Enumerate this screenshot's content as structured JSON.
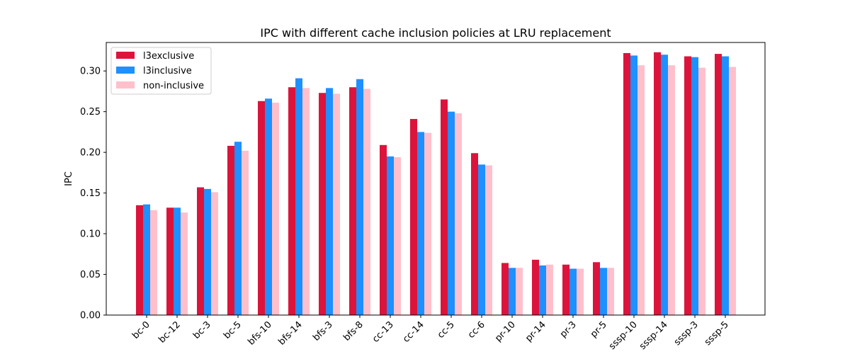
{
  "chart_data": {
    "type": "bar",
    "title": "IPC with different cache inclusion policies at LRU replacement",
    "xlabel": "",
    "ylabel": "IPC",
    "ylim": [
      0,
      0.335
    ],
    "yticks": [
      "0.00",
      "0.05",
      "0.10",
      "0.15",
      "0.20",
      "0.25",
      "0.30"
    ],
    "grid": false,
    "legend_position": "top-left",
    "categories": [
      "bc-0",
      "bc-12",
      "bc-3",
      "bc-5",
      "bfs-10",
      "bfs-14",
      "bfs-3",
      "bfs-8",
      "cc-13",
      "cc-14",
      "cc-5",
      "cc-6",
      "pr-10",
      "pr-14",
      "pr-3",
      "pr-5",
      "sssp-10",
      "sssp-14",
      "sssp-3",
      "sssp-5"
    ],
    "series": [
      {
        "name": "l3exclusive",
        "color": "#dc143c",
        "values": [
          0.135,
          0.132,
          0.157,
          0.208,
          0.263,
          0.28,
          0.273,
          0.28,
          0.209,
          0.241,
          0.265,
          0.199,
          0.064,
          0.068,
          0.062,
          0.065,
          0.322,
          0.323,
          0.318,
          0.321
        ]
      },
      {
        "name": "l3inclusive",
        "color": "#1e90ff",
        "values": [
          0.136,
          0.132,
          0.155,
          0.213,
          0.266,
          0.291,
          0.279,
          0.29,
          0.195,
          0.225,
          0.25,
          0.185,
          0.058,
          0.061,
          0.057,
          0.058,
          0.319,
          0.32,
          0.317,
          0.318
        ]
      },
      {
        "name": "non-inclusive",
        "color": "#ffc0cb",
        "values": [
          0.129,
          0.126,
          0.151,
          0.202,
          0.261,
          0.279,
          0.272,
          0.278,
          0.194,
          0.224,
          0.248,
          0.184,
          0.058,
          0.062,
          0.057,
          0.058,
          0.307,
          0.307,
          0.304,
          0.305
        ]
      }
    ]
  }
}
